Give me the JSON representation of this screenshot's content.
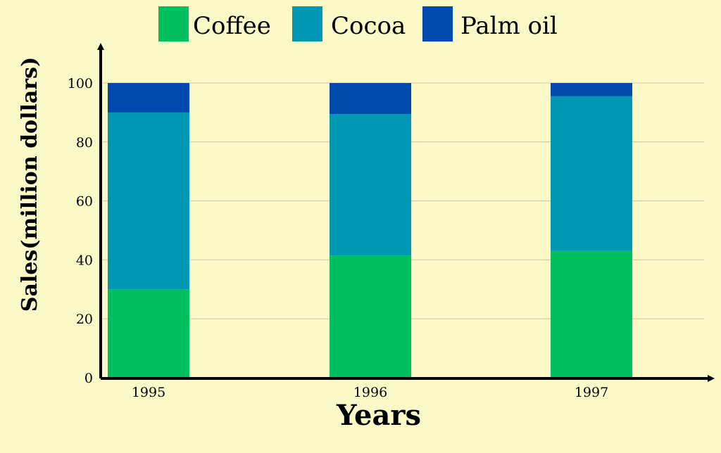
{
  "chart_data": {
    "type": "bar",
    "stacked": true,
    "categories": [
      "1995",
      "1996",
      "1997"
    ],
    "series": [
      {
        "name": "Coffee",
        "color": "#00bf5f",
        "values": [
          30,
          41.5,
          43
        ]
      },
      {
        "name": "Cocoa",
        "color": "#0097b2",
        "values": [
          60,
          48,
          52.5
        ]
      },
      {
        "name": "Palm oil",
        "color": "#004aad",
        "values": [
          10,
          10.5,
          4.5
        ]
      }
    ],
    "xlabel": "Years",
    "ylabel": "Sales(million dollars)",
    "ylim": [
      0,
      100
    ],
    "yticks": [
      0,
      20,
      40,
      60,
      80,
      100
    ],
    "grid": true,
    "legend_position": "top"
  }
}
